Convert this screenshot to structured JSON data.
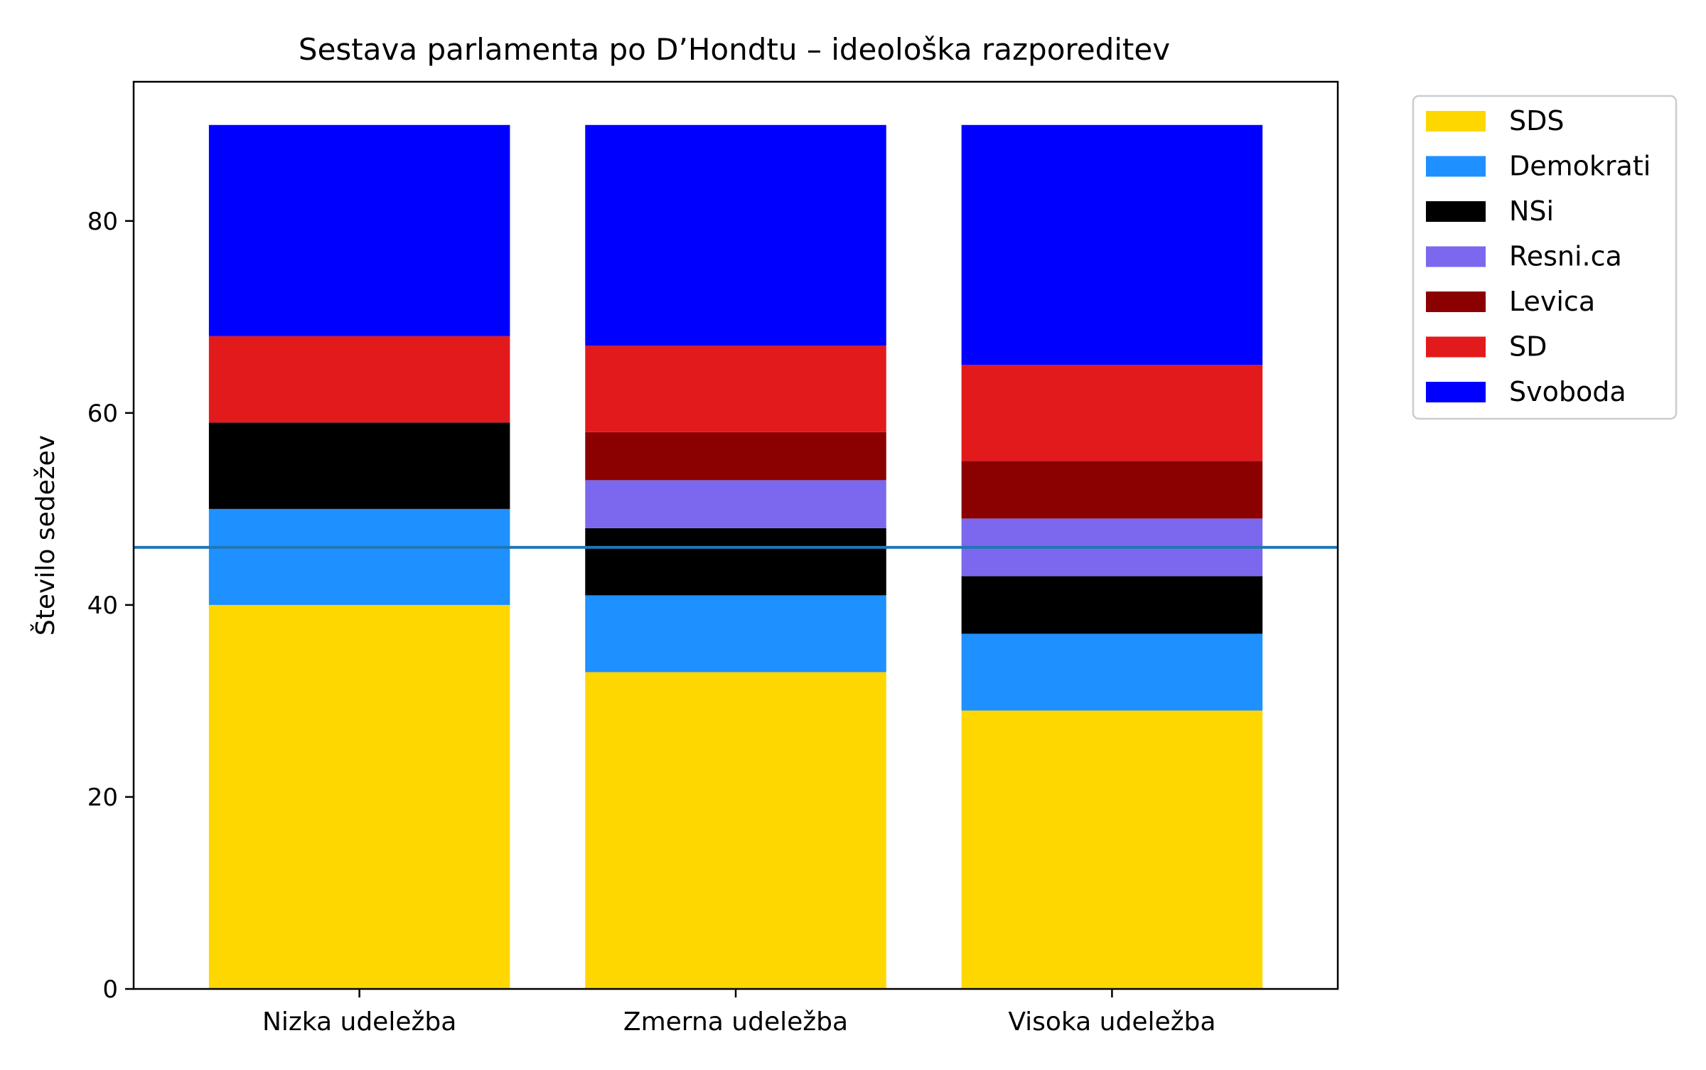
{
  "chart_data": {
    "type": "bar",
    "stacked": true,
    "title": "Sestava parlamenta po D’Hondtu – ideološka razporeditev",
    "xlabel": "",
    "ylabel": "Število sedežev",
    "categories": [
      "Nizka udeležba",
      "Zmerna udeležba",
      "Visoka udeležba"
    ],
    "ylim": [
      0,
      94.5
    ],
    "yticks": [
      0,
      20,
      40,
      60,
      80
    ],
    "grid": false,
    "legend_position": "outside-top-right",
    "majority_line": {
      "value": 46,
      "color": "#1f77b4"
    },
    "series": [
      {
        "name": "SDS",
        "color": "#ffd700",
        "values": [
          40,
          33,
          29
        ]
      },
      {
        "name": "Demokrati",
        "color": "#1e90ff",
        "values": [
          10,
          8,
          8
        ]
      },
      {
        "name": "NSi",
        "color": "#000000",
        "values": [
          9,
          7,
          6
        ]
      },
      {
        "name": "Resni.ca",
        "color": "#7b68ee",
        "values": [
          0,
          5,
          6
        ]
      },
      {
        "name": "Levica",
        "color": "#8b0000",
        "values": [
          0,
          5,
          6
        ]
      },
      {
        "name": "SD",
        "color": "#e31a1c",
        "values": [
          9,
          9,
          10
        ]
      },
      {
        "name": "Svoboda",
        "color": "#0000ff",
        "values": [
          22,
          23,
          25
        ]
      }
    ]
  }
}
